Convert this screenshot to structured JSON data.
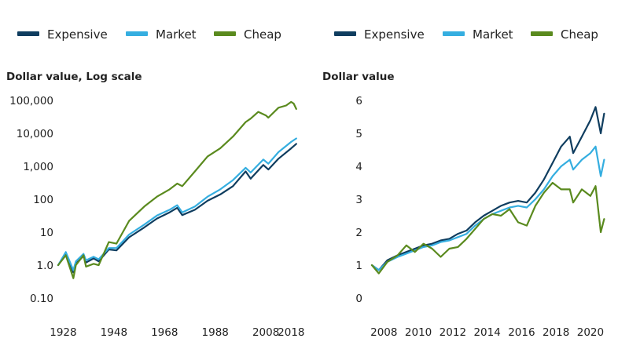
{
  "chart_data": [
    {
      "type": "line",
      "title": "",
      "ylabel": "Dollar value, Log scale",
      "y_scale": "log",
      "ylim": [
        0.1,
        100000
      ],
      "xlim": [
        1926,
        2021
      ],
      "x_ticks": [
        "1928",
        "1948",
        "1968",
        "1988",
        "2008",
        "2018"
      ],
      "y_ticks": [
        "0.10",
        "1.0",
        "10",
        "100",
        "1,000",
        "10,000",
        "100,000"
      ],
      "legend": [
        "Expensive",
        "Market",
        "Cheap"
      ],
      "legend_position": "top-left",
      "grid": false,
      "series": [
        {
          "name": "Expensive",
          "color": "#0f3d5f",
          "x": [
            1926,
            1929,
            1932,
            1933,
            1936,
            1937,
            1940,
            1942,
            1946,
            1949,
            1954,
            1960,
            1965,
            1970,
            1973,
            1975,
            1980,
            1985,
            1990,
            1995,
            2000,
            2002,
            2007,
            2009,
            2013,
            2018,
            2020
          ],
          "values": [
            1.0,
            2.3,
            0.6,
            1.1,
            1.9,
            1.2,
            1.6,
            1.3,
            3.0,
            2.8,
            7.0,
            14,
            26,
            40,
            55,
            33,
            48,
            90,
            140,
            250,
            700,
            420,
            1100,
            800,
            1700,
            3500,
            4800
          ]
        },
        {
          "name": "Market",
          "color": "#35aee0",
          "x": [
            1926,
            1929,
            1932,
            1933,
            1936,
            1937,
            1940,
            1942,
            1946,
            1949,
            1954,
            1960,
            1965,
            1970,
            1973,
            1975,
            1980,
            1985,
            1990,
            1995,
            2000,
            2002,
            2007,
            2009,
            2013,
            2018,
            2020
          ],
          "values": [
            1.0,
            2.5,
            0.7,
            1.3,
            2.2,
            1.4,
            1.8,
            1.5,
            3.3,
            3.3,
            8.5,
            17,
            32,
            48,
            66,
            40,
            60,
            120,
            200,
            380,
            900,
            650,
            1600,
            1200,
            2700,
            5500,
            7000
          ]
        },
        {
          "name": "Cheap",
          "color": "#5a8a1e",
          "x": [
            1926,
            1929,
            1932,
            1933,
            1936,
            1937,
            1940,
            1942,
            1946,
            1949,
            1954,
            1960,
            1965,
            1970,
            1973,
            1975,
            1980,
            1985,
            1990,
            1995,
            2000,
            2002,
            2005,
            2008,
            2009,
            2013,
            2016,
            2018,
            2019,
            2020
          ],
          "values": [
            1.0,
            2.0,
            0.4,
            1.0,
            2.0,
            0.9,
            1.1,
            1.0,
            5.0,
            4.5,
            22,
            60,
            120,
            200,
            300,
            250,
            700,
            2000,
            3500,
            8000,
            22000,
            28000,
            45000,
            35000,
            30000,
            60000,
            70000,
            90000,
            80000,
            55000
          ]
        }
      ]
    },
    {
      "type": "line",
      "title": "",
      "ylabel": "Dollar value",
      "y_scale": "linear",
      "ylim": [
        0,
        6
      ],
      "xlim": [
        2007.3,
        2021.1
      ],
      "x_ticks": [
        "2008",
        "2010",
        "2012",
        "2014",
        "2016",
        "2018",
        "2020"
      ],
      "y_ticks": [
        "0",
        "1",
        "2",
        "3",
        "4",
        "5",
        "6"
      ],
      "legend": [
        "Expensive",
        "Market",
        "Cheap"
      ],
      "legend_position": "top-left",
      "grid": false,
      "series": [
        {
          "name": "Expensive",
          "color": "#0f3d5f",
          "x": [
            2007.3,
            2007.7,
            2008.2,
            2008.8,
            2009.3,
            2009.8,
            2010.3,
            2010.8,
            2011.3,
            2011.8,
            2012.3,
            2012.8,
            2013.3,
            2013.8,
            2014.3,
            2014.8,
            2015.3,
            2015.8,
            2016.3,
            2016.8,
            2017.3,
            2017.8,
            2018.3,
            2018.8,
            2019.0,
            2019.5,
            2020.0,
            2020.3,
            2020.6,
            2020.8
          ],
          "values": [
            1.0,
            0.85,
            1.15,
            1.3,
            1.4,
            1.5,
            1.6,
            1.65,
            1.75,
            1.8,
            1.95,
            2.05,
            2.3,
            2.5,
            2.65,
            2.8,
            2.9,
            2.95,
            2.9,
            3.2,
            3.6,
            4.1,
            4.6,
            4.9,
            4.4,
            4.9,
            5.4,
            5.8,
            5.0,
            5.6
          ]
        },
        {
          "name": "Market",
          "color": "#35aee0",
          "x": [
            2007.3,
            2007.7,
            2008.2,
            2008.8,
            2009.3,
            2009.8,
            2010.3,
            2010.8,
            2011.3,
            2011.8,
            2012.3,
            2012.8,
            2013.3,
            2013.8,
            2014.3,
            2014.8,
            2015.3,
            2015.8,
            2016.3,
            2016.8,
            2017.3,
            2017.8,
            2018.3,
            2018.8,
            2019.0,
            2019.5,
            2020.0,
            2020.3,
            2020.6,
            2020.8
          ],
          "values": [
            1.0,
            0.85,
            1.1,
            1.25,
            1.35,
            1.45,
            1.55,
            1.6,
            1.7,
            1.75,
            1.85,
            1.95,
            2.2,
            2.4,
            2.55,
            2.65,
            2.75,
            2.8,
            2.75,
            3.0,
            3.3,
            3.7,
            4.0,
            4.2,
            3.9,
            4.2,
            4.4,
            4.6,
            3.7,
            4.2
          ]
        },
        {
          "name": "Cheap",
          "color": "#5a8a1e",
          "x": [
            2007.3,
            2007.7,
            2008.2,
            2008.8,
            2009.3,
            2009.8,
            2010.3,
            2010.8,
            2011.3,
            2011.8,
            2012.3,
            2012.8,
            2013.3,
            2013.8,
            2014.3,
            2014.8,
            2015.3,
            2015.8,
            2016.3,
            2016.8,
            2017.3,
            2017.8,
            2018.3,
            2018.8,
            2019.0,
            2019.5,
            2020.0,
            2020.3,
            2020.6,
            2020.8
          ],
          "values": [
            1.0,
            0.75,
            1.1,
            1.3,
            1.6,
            1.4,
            1.65,
            1.5,
            1.25,
            1.5,
            1.55,
            1.8,
            2.1,
            2.4,
            2.55,
            2.5,
            2.7,
            2.3,
            2.2,
            2.8,
            3.2,
            3.5,
            3.3,
            3.3,
            2.9,
            3.3,
            3.1,
            3.4,
            2.0,
            2.4
          ]
        }
      ]
    }
  ]
}
